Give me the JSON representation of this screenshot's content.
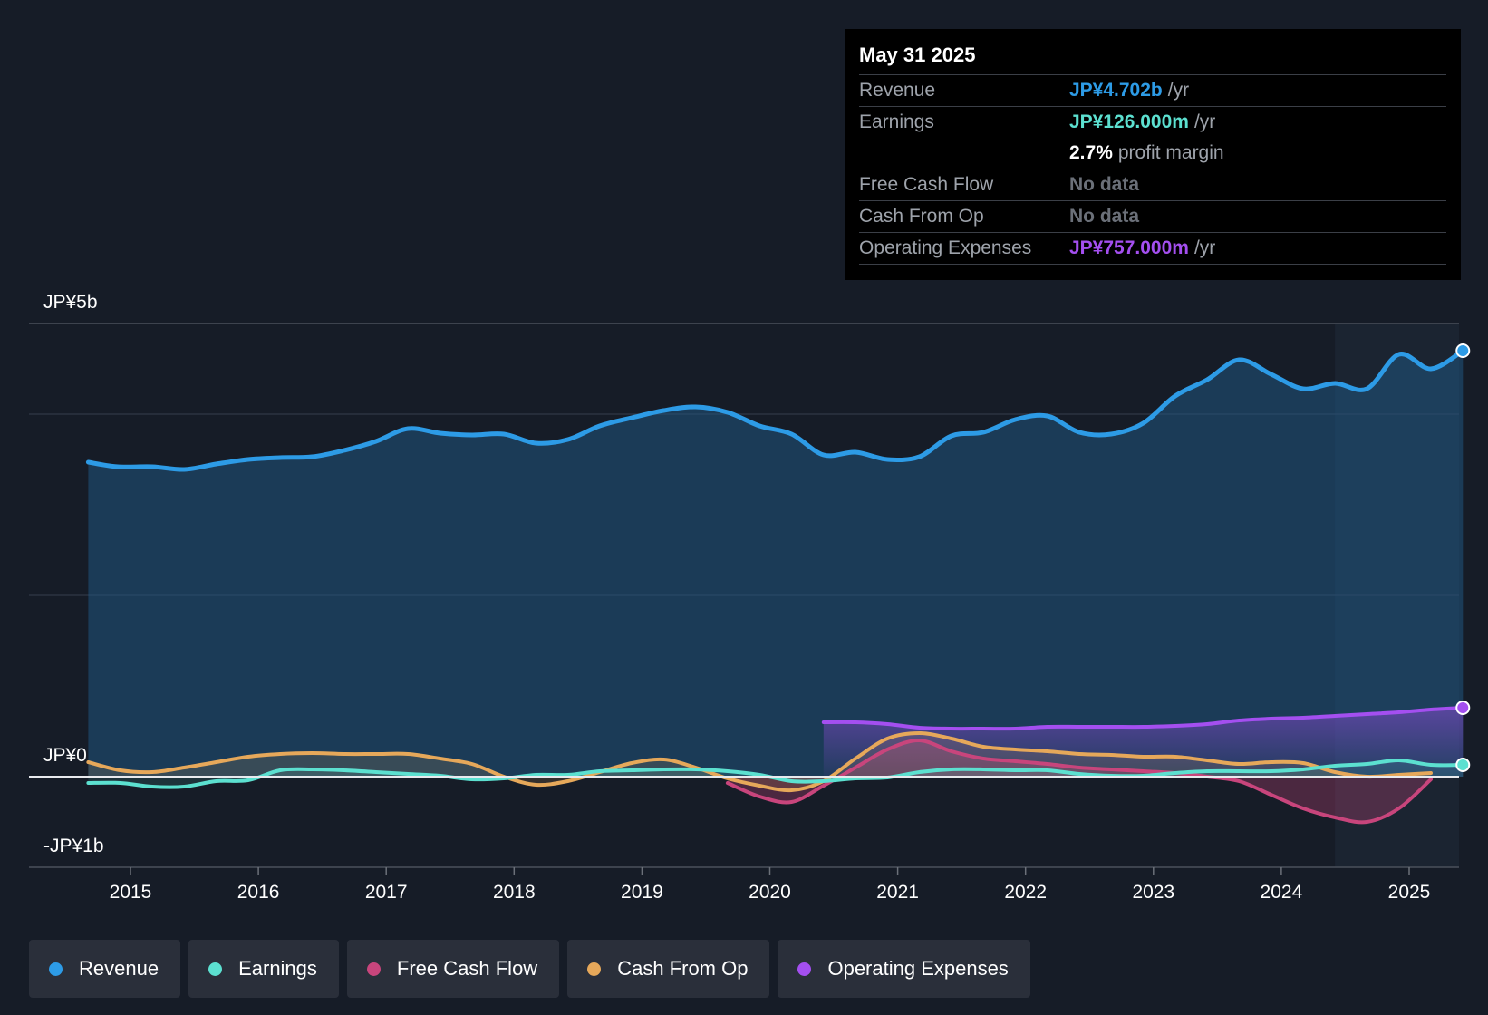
{
  "colors": {
    "revenue": "#2d9be6",
    "earnings": "#5ce0d0",
    "fcf": "#c8457c",
    "cfo": "#e6a85a",
    "opex": "#a44ff0"
  },
  "tooltip": {
    "date": "May 31 2025",
    "rows": [
      {
        "label": "Revenue",
        "value": "JP¥4.702b",
        "unit": "/yr"
      },
      {
        "label": "Earnings",
        "value": "JP¥126.000m",
        "unit": "/yr"
      },
      {
        "label": "",
        "value": "2.7%",
        "unit": "profit margin"
      },
      {
        "label": "Free Cash Flow",
        "value": "No data"
      },
      {
        "label": "Cash From Op",
        "value": "No data"
      },
      {
        "label": "Operating Expenses",
        "value": "JP¥757.000m",
        "unit": "/yr"
      }
    ]
  },
  "legend": [
    {
      "label": "Revenue",
      "color_key": "revenue"
    },
    {
      "label": "Earnings",
      "color_key": "earnings"
    },
    {
      "label": "Free Cash Flow",
      "color_key": "fcf"
    },
    {
      "label": "Cash From Op",
      "color_key": "cfo"
    },
    {
      "label": "Operating Expenses",
      "color_key": "opex"
    }
  ],
  "chart_data": {
    "type": "line",
    "title": "",
    "currency": "JP¥",
    "y_labels": [
      {
        "value": 5,
        "text": "JP¥5b"
      },
      {
        "value": 0,
        "text": "JP¥0"
      },
      {
        "value": -1,
        "text": "-JP¥1b"
      }
    ],
    "ylim": [
      -1,
      5
    ],
    "xlim": [
      2014.22,
      2025.42
    ],
    "x_ticks": [
      2015,
      2016,
      2017,
      2018,
      2019,
      2020,
      2021,
      2022,
      2023,
      2024,
      2025
    ],
    "forecast_start": 2024.42,
    "series": [
      {
        "name": "Revenue",
        "color_key": "revenue",
        "unit": "JP¥b",
        "points": [
          [
            2014.67,
            3.47
          ],
          [
            2014.9,
            3.42
          ],
          [
            2015.17,
            3.42
          ],
          [
            2015.42,
            3.39
          ],
          [
            2015.67,
            3.45
          ],
          [
            2015.92,
            3.5
          ],
          [
            2016.17,
            3.52
          ],
          [
            2016.42,
            3.53
          ],
          [
            2016.67,
            3.6
          ],
          [
            2016.92,
            3.7
          ],
          [
            2017.17,
            3.84
          ],
          [
            2017.42,
            3.79
          ],
          [
            2017.67,
            3.77
          ],
          [
            2017.92,
            3.78
          ],
          [
            2018.17,
            3.68
          ],
          [
            2018.42,
            3.72
          ],
          [
            2018.67,
            3.87
          ],
          [
            2018.92,
            3.96
          ],
          [
            2019.17,
            4.04
          ],
          [
            2019.42,
            4.08
          ],
          [
            2019.67,
            4.02
          ],
          [
            2019.92,
            3.87
          ],
          [
            2020.17,
            3.78
          ],
          [
            2020.42,
            3.55
          ],
          [
            2020.67,
            3.58
          ],
          [
            2020.92,
            3.5
          ],
          [
            2021.17,
            3.53
          ],
          [
            2021.42,
            3.76
          ],
          [
            2021.67,
            3.8
          ],
          [
            2021.92,
            3.94
          ],
          [
            2022.17,
            3.98
          ],
          [
            2022.42,
            3.8
          ],
          [
            2022.67,
            3.78
          ],
          [
            2022.92,
            3.9
          ],
          [
            2023.17,
            4.2
          ],
          [
            2023.42,
            4.38
          ],
          [
            2023.67,
            4.6
          ],
          [
            2023.92,
            4.44
          ],
          [
            2024.17,
            4.28
          ],
          [
            2024.42,
            4.34
          ],
          [
            2024.67,
            4.28
          ],
          [
            2024.92,
            4.66
          ],
          [
            2025.17,
            4.5
          ],
          [
            2025.42,
            4.7
          ]
        ]
      },
      {
        "name": "Earnings",
        "color_key": "earnings",
        "unit": "JP¥b",
        "points": [
          [
            2014.67,
            -0.07
          ],
          [
            2014.92,
            -0.07
          ],
          [
            2015.17,
            -0.11
          ],
          [
            2015.42,
            -0.11
          ],
          [
            2015.67,
            -0.05
          ],
          [
            2015.92,
            -0.04
          ],
          [
            2016.17,
            0.07
          ],
          [
            2016.42,
            0.08
          ],
          [
            2016.67,
            0.07
          ],
          [
            2016.92,
            0.05
          ],
          [
            2017.17,
            0.03
          ],
          [
            2017.42,
            0.01
          ],
          [
            2017.67,
            -0.03
          ],
          [
            2017.92,
            -0.02
          ],
          [
            2018.17,
            0.02
          ],
          [
            2018.42,
            0.02
          ],
          [
            2018.67,
            0.06
          ],
          [
            2018.92,
            0.07
          ],
          [
            2019.17,
            0.08
          ],
          [
            2019.42,
            0.08
          ],
          [
            2019.67,
            0.06
          ],
          [
            2019.92,
            0.02
          ],
          [
            2020.17,
            -0.05
          ],
          [
            2020.42,
            -0.05
          ],
          [
            2020.67,
            -0.02
          ],
          [
            2020.92,
            -0.01
          ],
          [
            2021.17,
            0.05
          ],
          [
            2021.42,
            0.08
          ],
          [
            2021.67,
            0.08
          ],
          [
            2021.92,
            0.07
          ],
          [
            2022.17,
            0.07
          ],
          [
            2022.42,
            0.03
          ],
          [
            2022.67,
            0.01
          ],
          [
            2022.92,
            0.01
          ],
          [
            2023.17,
            0.04
          ],
          [
            2023.42,
            0.06
          ],
          [
            2023.67,
            0.06
          ],
          [
            2023.92,
            0.06
          ],
          [
            2024.17,
            0.08
          ],
          [
            2024.42,
            0.12
          ],
          [
            2024.67,
            0.14
          ],
          [
            2024.92,
            0.18
          ],
          [
            2025.17,
            0.13
          ],
          [
            2025.42,
            0.13
          ]
        ]
      },
      {
        "name": "Free Cash Flow",
        "color_key": "fcf",
        "unit": "JP¥b",
        "points": [
          [
            2019.67,
            -0.07
          ],
          [
            2019.92,
            -0.22
          ],
          [
            2020.17,
            -0.28
          ],
          [
            2020.42,
            -0.1
          ],
          [
            2020.67,
            0.1
          ],
          [
            2020.92,
            0.3
          ],
          [
            2021.17,
            0.4
          ],
          [
            2021.42,
            0.28
          ],
          [
            2021.67,
            0.2
          ],
          [
            2021.92,
            0.17
          ],
          [
            2022.17,
            0.14
          ],
          [
            2022.42,
            0.1
          ],
          [
            2022.67,
            0.08
          ],
          [
            2022.92,
            0.06
          ],
          [
            2023.17,
            0.04
          ],
          [
            2023.42,
            0.0
          ],
          [
            2023.67,
            -0.05
          ],
          [
            2023.92,
            -0.2
          ],
          [
            2024.17,
            -0.35
          ],
          [
            2024.42,
            -0.45
          ],
          [
            2024.67,
            -0.5
          ],
          [
            2024.92,
            -0.35
          ],
          [
            2025.17,
            -0.03
          ]
        ]
      },
      {
        "name": "Cash From Op",
        "color_key": "cfo",
        "unit": "JP¥b",
        "points": [
          [
            2014.67,
            0.16
          ],
          [
            2014.92,
            0.07
          ],
          [
            2015.17,
            0.05
          ],
          [
            2015.42,
            0.1
          ],
          [
            2015.67,
            0.16
          ],
          [
            2015.92,
            0.22
          ],
          [
            2016.17,
            0.25
          ],
          [
            2016.42,
            0.26
          ],
          [
            2016.67,
            0.25
          ],
          [
            2016.92,
            0.25
          ],
          [
            2017.17,
            0.25
          ],
          [
            2017.42,
            0.2
          ],
          [
            2017.67,
            0.14
          ],
          [
            2017.92,
            0.0
          ],
          [
            2018.17,
            -0.09
          ],
          [
            2018.42,
            -0.05
          ],
          [
            2018.67,
            0.05
          ],
          [
            2018.92,
            0.15
          ],
          [
            2019.17,
            0.19
          ],
          [
            2019.42,
            0.1
          ],
          [
            2019.67,
            -0.02
          ],
          [
            2019.92,
            -0.1
          ],
          [
            2020.17,
            -0.15
          ],
          [
            2020.42,
            -0.05
          ],
          [
            2020.67,
            0.2
          ],
          [
            2020.92,
            0.42
          ],
          [
            2021.17,
            0.48
          ],
          [
            2021.42,
            0.42
          ],
          [
            2021.67,
            0.33
          ],
          [
            2021.92,
            0.3
          ],
          [
            2022.17,
            0.28
          ],
          [
            2022.42,
            0.25
          ],
          [
            2022.67,
            0.24
          ],
          [
            2022.92,
            0.22
          ],
          [
            2023.17,
            0.22
          ],
          [
            2023.42,
            0.18
          ],
          [
            2023.67,
            0.14
          ],
          [
            2023.92,
            0.16
          ],
          [
            2024.17,
            0.15
          ],
          [
            2024.42,
            0.05
          ],
          [
            2024.67,
            0.0
          ],
          [
            2024.92,
            0.02
          ],
          [
            2025.17,
            0.04
          ]
        ]
      },
      {
        "name": "Operating Expenses",
        "color_key": "opex",
        "unit": "JP¥b",
        "points": [
          [
            2020.42,
            0.6
          ],
          [
            2020.67,
            0.6
          ],
          [
            2020.92,
            0.58
          ],
          [
            2021.17,
            0.54
          ],
          [
            2021.42,
            0.53
          ],
          [
            2021.67,
            0.53
          ],
          [
            2021.92,
            0.53
          ],
          [
            2022.17,
            0.55
          ],
          [
            2022.42,
            0.55
          ],
          [
            2022.67,
            0.55
          ],
          [
            2022.92,
            0.55
          ],
          [
            2023.17,
            0.56
          ],
          [
            2023.42,
            0.58
          ],
          [
            2023.67,
            0.62
          ],
          [
            2023.92,
            0.64
          ],
          [
            2024.17,
            0.65
          ],
          [
            2024.42,
            0.67
          ],
          [
            2024.67,
            0.69
          ],
          [
            2024.92,
            0.71
          ],
          [
            2025.17,
            0.74
          ],
          [
            2025.42,
            0.76
          ]
        ]
      }
    ]
  }
}
